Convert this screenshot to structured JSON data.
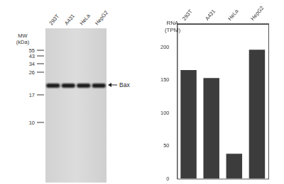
{
  "blot": {
    "lanes": [
      "293T",
      "A431",
      "HeLa",
      "HepG2"
    ],
    "mw_label": "MW (kDa)",
    "mw_markers": [
      55,
      43,
      34,
      26,
      17,
      10
    ],
    "band_label": "Bax"
  },
  "chart_data": {
    "type": "bar",
    "ylabel": "RNA (TPM)",
    "categories": [
      "293T",
      "A431",
      "HeLa",
      "HepG2"
    ],
    "values": [
      165,
      153,
      38,
      196
    ],
    "color": "#3c3c3c",
    "ylim": [
      0,
      235
    ],
    "yticks": [
      0,
      50,
      100,
      150,
      200
    ],
    "grid": false
  }
}
